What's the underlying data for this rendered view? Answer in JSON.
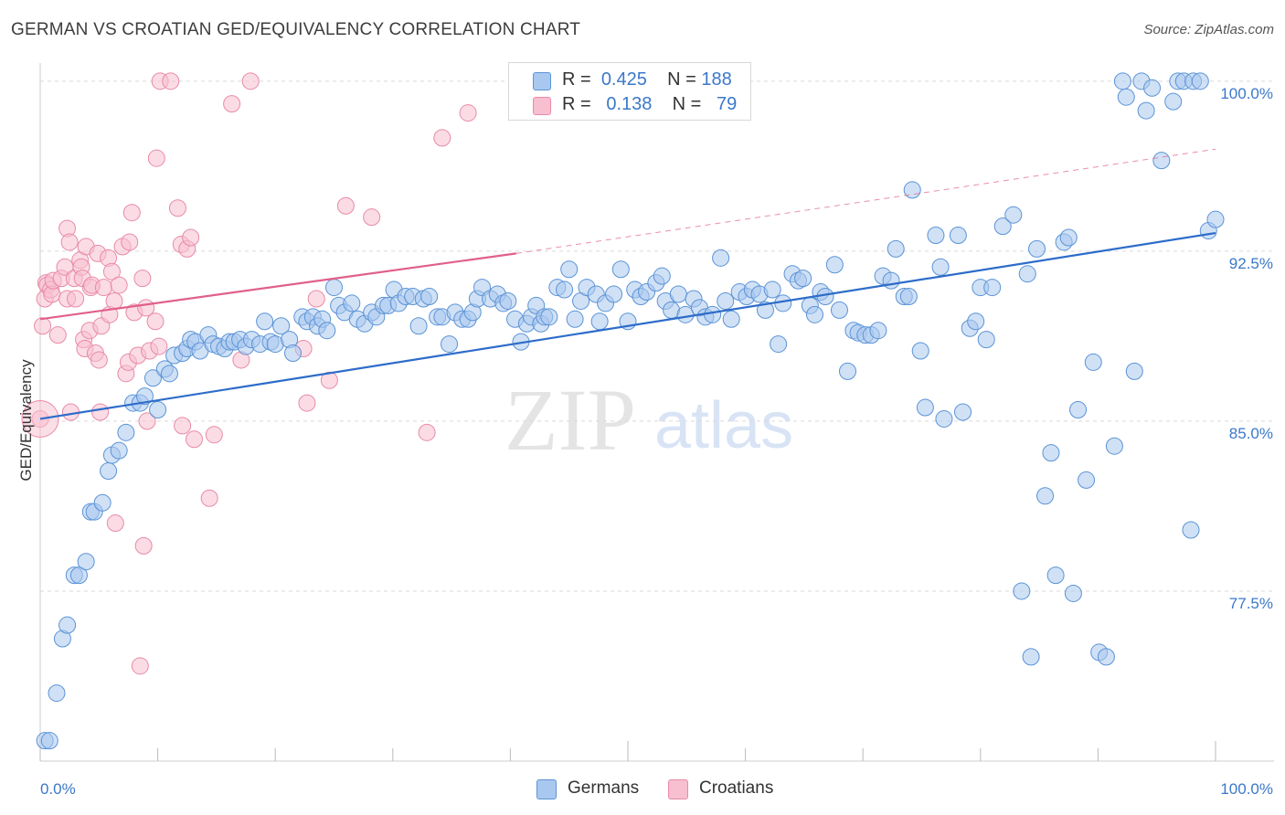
{
  "title": "GERMAN VS CROATIAN GED/EQUIVALENCY CORRELATION CHART",
  "source": "Source: ZipAtlas.com",
  "watermark": {
    "zip": "ZIP",
    "atlas": "atlas"
  },
  "colors": {
    "blue_fill": "#a9c8ef",
    "blue_stroke": "#5b93d6",
    "blue_line": "#2d6cc9",
    "pink_fill": "#f7bfd0",
    "pink_stroke": "#e88aa8",
    "pink_line": "#e0608a",
    "axis_text": "#3b78c9",
    "grid": "#d9d9d9"
  },
  "legend": {
    "rows": [
      {
        "r_label": "R =",
        "r_value": "0.425",
        "n_label": "N =",
        "n_value": "188",
        "color": "#a9c8ef",
        "border": "#5b93d6"
      },
      {
        "r_label": "R =",
        "r_value": "0.138",
        "n_label": "N =",
        "n_value": "79",
        "color": "#f7bfd0",
        "border": "#e88aa8"
      }
    ]
  },
  "bottom_legend": [
    {
      "label": "Germans",
      "color": "#a9c8ef",
      "border": "#5b93d6"
    },
    {
      "label": "Croatians",
      "color": "#f7bfd0",
      "border": "#e88aa8"
    }
  ],
  "chart_data": {
    "type": "scatter",
    "title": "GERMAN VS CROATIAN GED/EQUIVALENCY CORRELATION CHART",
    "ylabel": "GED/Equivalency",
    "xlabel": "",
    "xlim": [
      0,
      100
    ],
    "ylim": [
      70.0,
      100.8
    ],
    "x_tick_labels": [
      "0.0%",
      "100.0%"
    ],
    "y_ticks": [
      77.5,
      85.0,
      92.5,
      100.0
    ],
    "y_tick_labels": [
      "77.5%",
      "85.0%",
      "92.5%",
      "100.0%"
    ],
    "grid": "horizontal dashed",
    "legend_position": "top-center",
    "series": [
      {
        "name": "Germans",
        "R": 0.425,
        "N": 188,
        "trend": {
          "x": [
            0,
            100
          ],
          "y": [
            85.1,
            93.3
          ],
          "dashed_extension": false
        },
        "points": [
          [
            0.4,
            70.9
          ],
          [
            0.8,
            70.9
          ],
          [
            1.4,
            73.0
          ],
          [
            1.9,
            75.4
          ],
          [
            2.3,
            76.0
          ],
          [
            2.9,
            78.2
          ],
          [
            3.3,
            78.2
          ],
          [
            3.9,
            78.8
          ],
          [
            4.3,
            81.0
          ],
          [
            4.6,
            81.0
          ],
          [
            5.3,
            81.4
          ],
          [
            5.8,
            82.8
          ],
          [
            6.1,
            83.5
          ],
          [
            6.7,
            83.7
          ],
          [
            7.3,
            84.5
          ],
          [
            7.9,
            85.8
          ],
          [
            8.5,
            85.8
          ],
          [
            8.9,
            86.1
          ],
          [
            9.6,
            86.9
          ],
          [
            10.0,
            85.5
          ],
          [
            10.6,
            87.3
          ],
          [
            11.0,
            87.1
          ],
          [
            11.4,
            87.9
          ],
          [
            12.1,
            88.0
          ],
          [
            12.5,
            88.2
          ],
          [
            12.8,
            88.6
          ],
          [
            13.2,
            88.5
          ],
          [
            13.6,
            88.1
          ],
          [
            14.3,
            88.8
          ],
          [
            14.7,
            88.4
          ],
          [
            15.2,
            88.3
          ],
          [
            15.7,
            88.2
          ],
          [
            16.1,
            88.5
          ],
          [
            16.5,
            88.5
          ],
          [
            17.0,
            88.6
          ],
          [
            17.5,
            88.3
          ],
          [
            18.0,
            88.6
          ],
          [
            18.7,
            88.4
          ],
          [
            19.1,
            89.4
          ],
          [
            19.6,
            88.5
          ],
          [
            20.0,
            88.4
          ],
          [
            20.5,
            89.2
          ],
          [
            21.2,
            88.6
          ],
          [
            21.5,
            88.0
          ],
          [
            22.3,
            89.6
          ],
          [
            22.7,
            89.4
          ],
          [
            23.2,
            89.6
          ],
          [
            23.6,
            89.2
          ],
          [
            24.0,
            89.5
          ],
          [
            24.4,
            89.0
          ],
          [
            25.0,
            90.9
          ],
          [
            25.4,
            90.1
          ],
          [
            25.9,
            89.8
          ],
          [
            26.5,
            90.2
          ],
          [
            27.0,
            89.5
          ],
          [
            27.6,
            89.3
          ],
          [
            28.2,
            89.8
          ],
          [
            28.6,
            89.6
          ],
          [
            29.2,
            90.1
          ],
          [
            29.6,
            90.1
          ],
          [
            30.1,
            90.8
          ],
          [
            30.5,
            90.2
          ],
          [
            31.1,
            90.5
          ],
          [
            31.7,
            90.5
          ],
          [
            32.2,
            89.2
          ],
          [
            32.6,
            90.4
          ],
          [
            33.1,
            90.5
          ],
          [
            33.8,
            89.6
          ],
          [
            34.2,
            89.6
          ],
          [
            34.8,
            88.4
          ],
          [
            35.3,
            89.8
          ],
          [
            35.9,
            89.5
          ],
          [
            36.4,
            89.5
          ],
          [
            36.8,
            89.8
          ],
          [
            37.2,
            90.4
          ],
          [
            37.6,
            90.9
          ],
          [
            38.3,
            90.4
          ],
          [
            38.9,
            90.6
          ],
          [
            39.4,
            90.2
          ],
          [
            39.8,
            90.3
          ],
          [
            40.4,
            89.5
          ],
          [
            40.9,
            88.5
          ],
          [
            41.4,
            89.3
          ],
          [
            41.8,
            89.6
          ],
          [
            42.2,
            90.1
          ],
          [
            42.6,
            89.3
          ],
          [
            42.9,
            89.6
          ],
          [
            43.3,
            89.6
          ],
          [
            44.0,
            90.9
          ],
          [
            44.6,
            90.8
          ],
          [
            45.0,
            91.7
          ],
          [
            45.5,
            89.5
          ],
          [
            46.0,
            90.3
          ],
          [
            46.5,
            90.9
          ],
          [
            47.3,
            90.6
          ],
          [
            47.6,
            89.4
          ],
          [
            48.1,
            90.2
          ],
          [
            48.8,
            90.6
          ],
          [
            49.4,
            91.7
          ],
          [
            50.0,
            89.4
          ],
          [
            50.6,
            90.8
          ],
          [
            51.1,
            90.5
          ],
          [
            51.6,
            90.7
          ],
          [
            52.4,
            91.1
          ],
          [
            52.9,
            91.4
          ],
          [
            53.2,
            90.3
          ],
          [
            53.7,
            89.9
          ],
          [
            54.3,
            90.6
          ],
          [
            54.9,
            89.7
          ],
          [
            55.6,
            90.4
          ],
          [
            56.1,
            90.0
          ],
          [
            56.6,
            89.6
          ],
          [
            57.2,
            89.7
          ],
          [
            57.9,
            92.2
          ],
          [
            58.3,
            90.3
          ],
          [
            58.8,
            89.5
          ],
          [
            59.5,
            90.7
          ],
          [
            60.1,
            90.5
          ],
          [
            60.6,
            90.8
          ],
          [
            61.2,
            90.6
          ],
          [
            61.7,
            89.9
          ],
          [
            62.3,
            90.8
          ],
          [
            62.8,
            88.4
          ],
          [
            63.2,
            90.2
          ],
          [
            64.0,
            91.5
          ],
          [
            64.5,
            91.2
          ],
          [
            64.9,
            91.3
          ],
          [
            65.5,
            90.1
          ],
          [
            65.9,
            89.7
          ],
          [
            66.4,
            90.7
          ],
          [
            66.8,
            90.5
          ],
          [
            67.6,
            91.9
          ],
          [
            68.0,
            89.9
          ],
          [
            68.7,
            87.2
          ],
          [
            69.2,
            89.0
          ],
          [
            69.6,
            88.9
          ],
          [
            70.2,
            88.8
          ],
          [
            70.7,
            88.8
          ],
          [
            71.3,
            89.0
          ],
          [
            71.7,
            91.4
          ],
          [
            72.4,
            91.2
          ],
          [
            72.8,
            92.6
          ],
          [
            73.5,
            90.5
          ],
          [
            73.9,
            90.5
          ],
          [
            74.2,
            95.2
          ],
          [
            74.9,
            88.1
          ],
          [
            75.3,
            85.6
          ],
          [
            76.2,
            93.2
          ],
          [
            76.6,
            91.8
          ],
          [
            76.9,
            85.1
          ],
          [
            78.1,
            93.2
          ],
          [
            78.5,
            85.4
          ],
          [
            79.1,
            89.1
          ],
          [
            79.6,
            89.4
          ],
          [
            80.0,
            90.9
          ],
          [
            80.5,
            88.6
          ],
          [
            81.0,
            90.9
          ],
          [
            81.9,
            93.6
          ],
          [
            82.8,
            94.1
          ],
          [
            83.5,
            77.5
          ],
          [
            84.0,
            91.5
          ],
          [
            84.3,
            74.6
          ],
          [
            84.8,
            92.6
          ],
          [
            85.5,
            81.7
          ],
          [
            86.0,
            83.6
          ],
          [
            86.4,
            78.2
          ],
          [
            87.1,
            92.9
          ],
          [
            87.5,
            93.1
          ],
          [
            87.9,
            77.4
          ],
          [
            88.3,
            85.5
          ],
          [
            89.0,
            82.4
          ],
          [
            89.6,
            87.6
          ],
          [
            90.1,
            74.8
          ],
          [
            90.7,
            74.6
          ],
          [
            91.4,
            83.9
          ],
          [
            92.1,
            100.0
          ],
          [
            92.4,
            99.3
          ],
          [
            93.1,
            87.2
          ],
          [
            93.7,
            100.0
          ],
          [
            94.1,
            98.7
          ],
          [
            94.6,
            99.7
          ],
          [
            95.4,
            96.5
          ],
          [
            96.4,
            99.1
          ],
          [
            96.8,
            100.0
          ],
          [
            97.3,
            100.0
          ],
          [
            97.9,
            80.2
          ],
          [
            98.1,
            100.0
          ],
          [
            98.7,
            100.0
          ],
          [
            99.4,
            93.4
          ],
          [
            100.0,
            93.9
          ]
        ]
      },
      {
        "name": "Croatians",
        "R": 0.138,
        "N": 79,
        "trend": {
          "x": [
            0,
            40.5
          ],
          "y": [
            89.5,
            92.4
          ],
          "dashed_extension_to": [
            100,
            97.0
          ]
        },
        "points": [
          [
            0.0,
            85.1
          ],
          [
            0.2,
            89.2
          ],
          [
            0.4,
            90.4
          ],
          [
            0.5,
            91.1
          ],
          [
            0.6,
            91.0
          ],
          [
            0.9,
            90.8
          ],
          [
            1.0,
            90.6
          ],
          [
            1.1,
            91.2
          ],
          [
            1.5,
            88.8
          ],
          [
            1.8,
            91.3
          ],
          [
            2.1,
            91.8
          ],
          [
            2.3,
            90.4
          ],
          [
            2.3,
            93.5
          ],
          [
            2.5,
            92.9
          ],
          [
            2.6,
            85.4
          ],
          [
            2.9,
            91.3
          ],
          [
            3.0,
            90.4
          ],
          [
            3.4,
            92.1
          ],
          [
            3.5,
            91.8
          ],
          [
            3.6,
            91.3
          ],
          [
            3.7,
            88.6
          ],
          [
            3.8,
            88.2
          ],
          [
            3.9,
            92.7
          ],
          [
            4.2,
            89.0
          ],
          [
            4.3,
            90.9
          ],
          [
            4.4,
            91.0
          ],
          [
            4.7,
            88.0
          ],
          [
            4.9,
            92.4
          ],
          [
            5.0,
            87.7
          ],
          [
            5.1,
            85.4
          ],
          [
            5.2,
            89.2
          ],
          [
            5.4,
            90.9
          ],
          [
            5.8,
            92.2
          ],
          [
            5.9,
            89.7
          ],
          [
            6.1,
            91.6
          ],
          [
            6.3,
            90.3
          ],
          [
            6.4,
            80.5
          ],
          [
            6.7,
            91.0
          ],
          [
            7.0,
            92.7
          ],
          [
            7.3,
            87.1
          ],
          [
            7.5,
            87.6
          ],
          [
            7.6,
            92.9
          ],
          [
            7.8,
            94.2
          ],
          [
            8.0,
            89.8
          ],
          [
            8.3,
            87.9
          ],
          [
            8.5,
            74.2
          ],
          [
            8.7,
            91.3
          ],
          [
            8.8,
            79.5
          ],
          [
            9.0,
            90.0
          ],
          [
            9.1,
            85.0
          ],
          [
            9.3,
            88.1
          ],
          [
            9.8,
            89.4
          ],
          [
            9.9,
            96.6
          ],
          [
            10.1,
            88.3
          ],
          [
            10.2,
            100.0
          ],
          [
            11.1,
            100.0
          ],
          [
            11.7,
            94.4
          ],
          [
            12.0,
            92.8
          ],
          [
            12.1,
            84.8
          ],
          [
            12.5,
            92.6
          ],
          [
            12.8,
            93.1
          ],
          [
            13.1,
            84.2
          ],
          [
            14.4,
            81.6
          ],
          [
            14.8,
            84.4
          ],
          [
            16.3,
            99.0
          ],
          [
            17.1,
            87.7
          ],
          [
            17.9,
            100.0
          ],
          [
            22.4,
            88.2
          ],
          [
            22.7,
            85.8
          ],
          [
            23.5,
            90.4
          ],
          [
            24.6,
            86.8
          ],
          [
            26.0,
            94.5
          ],
          [
            28.2,
            94.0
          ],
          [
            32.9,
            84.5
          ],
          [
            34.2,
            97.5
          ],
          [
            36.4,
            98.6
          ]
        ]
      }
    ]
  }
}
